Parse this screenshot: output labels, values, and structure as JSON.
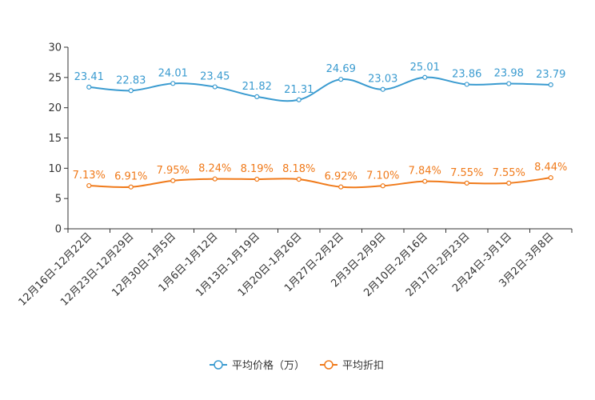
{
  "chart_data": {
    "type": "line",
    "title": "",
    "xlabel": "",
    "ylabel": "",
    "ylim": [
      0,
      30
    ],
    "yticks": [
      0,
      5,
      10,
      15,
      20,
      25,
      30
    ],
    "grid": false,
    "categories": [
      "12月16日-12月22日",
      "12月23日-12月29日",
      "12月30日-1月5日",
      "1月6日-1月12日",
      "1月13日-1月19日",
      "1月20日-1月26日",
      "1月27日-2月2日",
      "2月3日-2月9日",
      "2月10日-2月16日",
      "2月17日-2月23日",
      "2月24日-3月1日",
      "3月2日-3月8日"
    ],
    "series": [
      {
        "name": "平均价格（万）",
        "color": "#3a9bd0",
        "values": [
          23.41,
          22.83,
          24.01,
          23.45,
          21.82,
          21.31,
          24.69,
          23.03,
          25.01,
          23.86,
          23.98,
          23.79
        ],
        "labels": [
          "23.41",
          "22.83",
          "24.01",
          "23.45",
          "21.82",
          "21.31",
          "24.69",
          "23.03",
          "25.01",
          "23.86",
          "23.98",
          "23.79"
        ]
      },
      {
        "name": "平均折扣",
        "color": "#f07a1a",
        "values": [
          7.13,
          6.91,
          7.95,
          8.24,
          8.19,
          8.18,
          6.92,
          7.1,
          7.84,
          7.55,
          7.55,
          8.44
        ],
        "labels": [
          "7.13%",
          "6.91%",
          "7.95%",
          "8.24%",
          "8.19%",
          "8.18%",
          "6.92%",
          "7.10%",
          "7.84%",
          "7.55%",
          "7.55%",
          "8.44%"
        ]
      }
    ],
    "legend": "bottom-center"
  }
}
